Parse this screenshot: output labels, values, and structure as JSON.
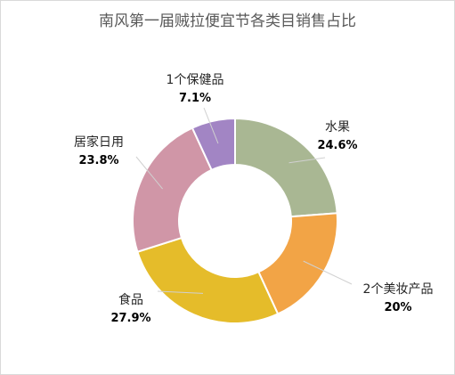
{
  "chart_data": {
    "type": "pie",
    "title": "南风第一届贼拉便宜节各类目销售占比",
    "donut": true,
    "categories": [
      "水果",
      "2个美妆产品",
      "食品",
      "居家日用",
      "1个保健品"
    ],
    "values_label": [
      "24.6%",
      "20%",
      "27.9%",
      "23.8%",
      "7.1%"
    ],
    "values": [
      24.6,
      20.0,
      27.9,
      23.8,
      7.1
    ],
    "colors": [
      "#a9b793",
      "#f2a446",
      "#e5bc2a",
      "#d096a7",
      "#a285c4"
    ],
    "legend": "none"
  }
}
